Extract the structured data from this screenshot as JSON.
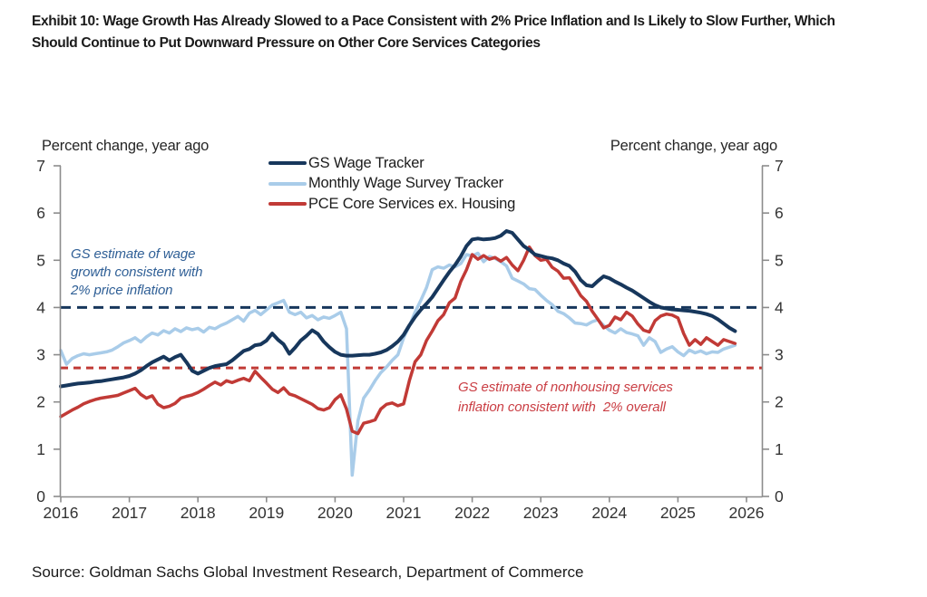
{
  "header": {
    "title_line1": "Exhibit 10: Wage Growth Has Already Slowed to a Pace Consistent with 2% Price Inflation and Is Likely to Slow Further, Which",
    "title_line2": "Should Continue to Put Downward Pressure on Other Core Services Categories"
  },
  "footer": {
    "source": "Source: Goldman Sachs Global Investment Research, Department of Commerce"
  },
  "axes": {
    "left_unit_label": "Percent change, year ago",
    "right_unit_label": "Percent change, year ago"
  },
  "annotations": {
    "wage": {
      "color": "#2F5F96",
      "lines": [
        "GS estimate of wage",
        "growth consistent with",
        "2% price inflation"
      ]
    },
    "inflation": {
      "color": "#CA3E44",
      "lines": [
        "GS estimate of nonhousing services",
        "inflation consistent with  2% overall"
      ]
    }
  },
  "colors": {
    "navy": "#17375C",
    "light_blue": "#A9CCE9",
    "red": "#C13A36",
    "axis": "#8C8C8C",
    "tick_text": "#333333"
  },
  "chart_data": {
    "type": "line",
    "title": "Exhibit 10: Wage Growth Has Already Slowed to a Pace Consistent with 2% Price Inflation and Is Likely to Slow Further, Which Should Continue to Put Downward Pressure on Other Core Services Categories",
    "ylabel": "Percent change, year ago",
    "xlabel": "",
    "x_start_year": 2016,
    "x_frequency": "monthly",
    "xticks": [
      2016,
      2017,
      2018,
      2019,
      2020,
      2021,
      2022,
      2023,
      2024,
      2025,
      2026
    ],
    "xlim": [
      2016,
      2026.2
    ],
    "ylim": [
      0,
      7
    ],
    "yticks": [
      0,
      1,
      2,
      3,
      4,
      5,
      6,
      7
    ],
    "grid": false,
    "dual_axis": true,
    "legend_position": "top-center-inside",
    "series": [
      {
        "name": "GS Wage Tracker",
        "color": "#17375C",
        "width": 4,
        "values": [
          2.33,
          2.35,
          2.37,
          2.39,
          2.4,
          2.41,
          2.43,
          2.44,
          2.46,
          2.48,
          2.5,
          2.52,
          2.55,
          2.6,
          2.67,
          2.76,
          2.84,
          2.9,
          2.96,
          2.88,
          2.95,
          3.0,
          2.84,
          2.66,
          2.6,
          2.66,
          2.72,
          2.76,
          2.78,
          2.8,
          2.88,
          2.98,
          3.08,
          3.12,
          3.2,
          3.22,
          3.3,
          3.45,
          3.32,
          3.22,
          3.02,
          3.15,
          3.3,
          3.4,
          3.52,
          3.44,
          3.28,
          3.16,
          3.06,
          3.0,
          2.98,
          2.98,
          2.99,
          3.0,
          3.0,
          3.02,
          3.05,
          3.1,
          3.18,
          3.28,
          3.42,
          3.62,
          3.8,
          3.95,
          4.08,
          4.22,
          4.4,
          4.58,
          4.75,
          4.9,
          5.08,
          5.3,
          5.44,
          5.46,
          5.44,
          5.45,
          5.47,
          5.52,
          5.62,
          5.58,
          5.44,
          5.3,
          5.22,
          5.12,
          5.09,
          5.06,
          5.04,
          5.0,
          4.93,
          4.88,
          4.76,
          4.58,
          4.47,
          4.45,
          4.56,
          4.66,
          4.62,
          4.55,
          4.49,
          4.42,
          4.36,
          4.28,
          4.2,
          4.12,
          4.05,
          4.0,
          3.98,
          3.96,
          3.95,
          3.94,
          3.93,
          3.91,
          3.89,
          3.86,
          3.82,
          3.75,
          3.66,
          3.57,
          3.5
        ]
      },
      {
        "name": "Monthly Wage Survey Tracker",
        "color": "#A9CCE9",
        "width": 3.5,
        "values": [
          3.09,
          2.8,
          2.92,
          2.98,
          3.02,
          3.0,
          3.02,
          3.04,
          3.06,
          3.1,
          3.17,
          3.25,
          3.3,
          3.36,
          3.27,
          3.38,
          3.46,
          3.42,
          3.51,
          3.46,
          3.55,
          3.49,
          3.57,
          3.53,
          3.56,
          3.48,
          3.58,
          3.55,
          3.62,
          3.67,
          3.74,
          3.81,
          3.71,
          3.88,
          3.94,
          3.85,
          3.95,
          4.05,
          4.1,
          4.15,
          3.9,
          3.85,
          3.9,
          3.78,
          3.83,
          3.74,
          3.8,
          3.77,
          3.83,
          3.9,
          3.55,
          0.45,
          1.6,
          2.08,
          2.25,
          2.45,
          2.62,
          2.74,
          2.88,
          3.0,
          3.36,
          3.61,
          3.9,
          4.15,
          4.42,
          4.8,
          4.86,
          4.83,
          4.9,
          4.86,
          4.93,
          5.12,
          5.09,
          5.15,
          4.97,
          5.08,
          5.04,
          4.97,
          4.88,
          4.62,
          4.56,
          4.5,
          4.4,
          4.38,
          4.26,
          4.15,
          4.06,
          3.92,
          3.87,
          3.78,
          3.67,
          3.66,
          3.63,
          3.7,
          3.74,
          3.62,
          3.52,
          3.46,
          3.55,
          3.47,
          3.44,
          3.4,
          3.2,
          3.36,
          3.28,
          3.05,
          3.12,
          3.17,
          3.06,
          2.98,
          3.1,
          3.04,
          3.08,
          3.02,
          3.06,
          3.05,
          3.12,
          3.16,
          3.2
        ]
      },
      {
        "name": "PCE Core Services ex. Housing",
        "color": "#C13A36",
        "width": 3.5,
        "values": [
          1.69,
          1.76,
          1.83,
          1.89,
          1.96,
          2.01,
          2.05,
          2.08,
          2.1,
          2.12,
          2.14,
          2.19,
          2.24,
          2.29,
          2.16,
          2.08,
          2.13,
          1.95,
          1.88,
          1.91,
          1.97,
          2.08,
          2.12,
          2.15,
          2.2,
          2.27,
          2.35,
          2.42,
          2.36,
          2.45,
          2.41,
          2.46,
          2.5,
          2.45,
          2.65,
          2.52,
          2.4,
          2.27,
          2.2,
          2.3,
          2.17,
          2.13,
          2.07,
          2.01,
          1.95,
          1.86,
          1.83,
          1.88,
          2.05,
          2.15,
          1.85,
          1.38,
          1.33,
          1.55,
          1.58,
          1.62,
          1.85,
          1.95,
          1.98,
          1.92,
          1.96,
          2.45,
          2.85,
          3.0,
          3.3,
          3.5,
          3.72,
          3.85,
          4.1,
          4.2,
          4.55,
          4.8,
          5.12,
          5.02,
          5.1,
          5.02,
          5.06,
          4.98,
          5.06,
          4.9,
          4.78,
          5.0,
          5.28,
          5.1,
          5.0,
          5.02,
          4.85,
          4.77,
          4.62,
          4.63,
          4.45,
          4.25,
          4.13,
          3.92,
          3.75,
          3.57,
          3.62,
          3.8,
          3.74,
          3.9,
          3.82,
          3.65,
          3.52,
          3.48,
          3.72,
          3.82,
          3.86,
          3.84,
          3.78,
          3.45,
          3.2,
          3.32,
          3.22,
          3.36,
          3.28,
          3.2,
          3.32,
          3.28,
          3.24
        ]
      }
    ],
    "reference_lines": [
      {
        "value": 4.0,
        "color": "#17375C",
        "style": "dashed",
        "label": "GS estimate of wage growth consistent with 2% price inflation"
      },
      {
        "value": 2.72,
        "color": "#C13A36",
        "style": "dashed",
        "label": "GS estimate of nonhousing services inflation consistent with 2% overall"
      }
    ]
  }
}
